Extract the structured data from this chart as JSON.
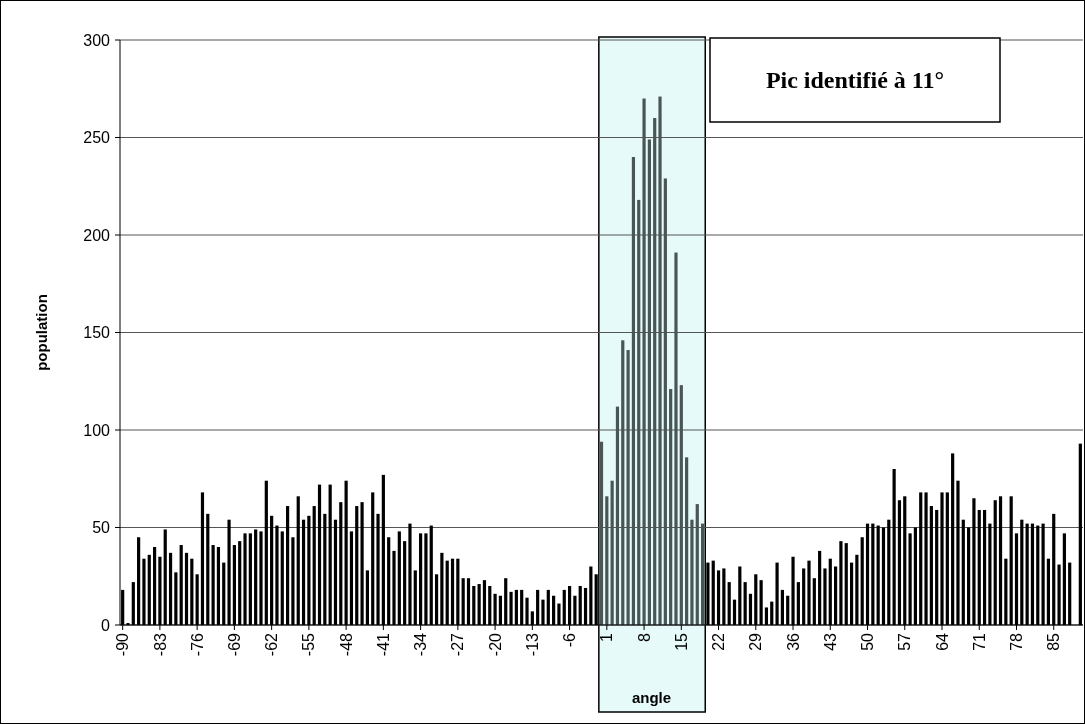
{
  "chart_data": {
    "type": "bar",
    "xlabel": "angle",
    "ylabel": "population",
    "annotations": [
      "Pic identifié à 11°"
    ],
    "x": [
      -90,
      -89,
      -88,
      -87,
      -86,
      -85,
      -84,
      -83,
      -82,
      -81,
      -80,
      -79,
      -78,
      -77,
      -76,
      -75,
      -74,
      -73,
      -72,
      -71,
      -70,
      -69,
      -68,
      -67,
      -66,
      -65,
      -64,
      -63,
      -62,
      -61,
      -60,
      -59,
      -58,
      -57,
      -56,
      -55,
      -54,
      -53,
      -52,
      -51,
      -50,
      -49,
      -48,
      -47,
      -46,
      -45,
      -44,
      -43,
      -42,
      -41,
      -40,
      -39,
      -38,
      -37,
      -36,
      -35,
      -34,
      -33,
      -32,
      -31,
      -30,
      -29,
      -28,
      -27,
      -26,
      -25,
      -24,
      -23,
      -22,
      -21,
      -20,
      -19,
      -18,
      -17,
      -16,
      -15,
      -14,
      -13,
      -12,
      -11,
      -10,
      -9,
      -8,
      -7,
      -6,
      -5,
      -4,
      -3,
      -2,
      -1,
      0,
      1,
      2,
      3,
      4,
      5,
      6,
      7,
      8,
      9,
      10,
      11,
      12,
      13,
      14,
      15,
      16,
      17,
      18,
      19,
      20,
      21,
      22,
      23,
      24,
      25,
      26,
      27,
      28,
      29,
      30,
      31,
      32,
      33,
      34,
      35,
      36,
      37,
      38,
      39,
      40,
      41,
      42,
      43,
      44,
      45,
      46,
      47,
      48,
      49,
      50,
      51,
      52,
      53,
      54,
      55,
      56,
      57,
      58,
      59,
      60,
      61,
      62,
      63,
      64,
      65,
      66,
      67,
      68,
      69,
      70,
      71,
      72,
      73,
      74,
      75,
      76,
      77,
      78,
      79,
      80,
      81,
      82,
      83,
      84,
      85,
      86,
      87,
      88,
      89,
      90
    ],
    "values": [
      18,
      1,
      22,
      45,
      34,
      36,
      40,
      35,
      49,
      37,
      27,
      41,
      37,
      34,
      26,
      68,
      57,
      41,
      40,
      32,
      54,
      41,
      43,
      47,
      47,
      49,
      48,
      74,
      56,
      51,
      48,
      61,
      45,
      66,
      54,
      56,
      61,
      72,
      57,
      72,
      54,
      63,
      74,
      48,
      61,
      63,
      28,
      68,
      57,
      77,
      45,
      38,
      48,
      43,
      52,
      28,
      47,
      47,
      51,
      26,
      37,
      33,
      34,
      34,
      24,
      24,
      20,
      21,
      23,
      20,
      16,
      15,
      24,
      17,
      18,
      18,
      14,
      7,
      18,
      13,
      18,
      15,
      11,
      18,
      20,
      15,
      20,
      19,
      30,
      26,
      94,
      66,
      74,
      112,
      146,
      141,
      240,
      218,
      270,
      249,
      260,
      271,
      229,
      121,
      191,
      123,
      86,
      54,
      62,
      52,
      32,
      33,
      28,
      29,
      22,
      13,
      30,
      22,
      16,
      26,
      23,
      9,
      12,
      32,
      18,
      15,
      35,
      22,
      29,
      33,
      24,
      38,
      29,
      34,
      30,
      43,
      42,
      32,
      36,
      45,
      52,
      52,
      51,
      50,
      54,
      80,
      64,
      66,
      47,
      50,
      68,
      68,
      61,
      59,
      68,
      68,
      88,
      74,
      54,
      50,
      65,
      59,
      59,
      52,
      64,
      66,
      34,
      66,
      47,
      54,
      52,
      52,
      51,
      52,
      34,
      57,
      31,
      47,
      32,
      0,
      93
    ],
    "colors": [
      "#000000",
      "#000000",
      "#000000",
      "#000000",
      "#000000",
      "#000000",
      "#000000",
      "#000000",
      "#000000",
      "#000000",
      "#000000",
      "#000000",
      "#000000",
      "#000000",
      "#000000",
      "#000000",
      "#000000",
      "#000000",
      "#000000",
      "#000000",
      "#000000",
      "#000000",
      "#000000",
      "#000000",
      "#000000",
      "#000000",
      "#000000",
      "#000000",
      "#000000",
      "#000000",
      "#000000",
      "#000000",
      "#000000",
      "#000000",
      "#000000",
      "#000000",
      "#000000",
      "#000000",
      "#000000",
      "#000000",
      "#000000",
      "#000000",
      "#000000",
      "#000000",
      "#000000",
      "#000000",
      "#000000",
      "#000000",
      "#000000",
      "#000000",
      "#000000",
      "#000000",
      "#000000",
      "#000000",
      "#000000",
      "#000000",
      "#000000",
      "#000000",
      "#000000",
      "#000000",
      "#000000",
      "#000000",
      "#000000",
      "#000000",
      "#000000",
      "#000000",
      "#000000",
      "#000000",
      "#000000",
      "#000000",
      "#000000",
      "#000000",
      "#000000",
      "#000000",
      "#000000",
      "#000000",
      "#000000",
      "#000000",
      "#000000",
      "#000000",
      "#000000",
      "#000000",
      "#000000",
      "#000000",
      "#000000",
      "#000000",
      "#000000",
      "#000000",
      "#000000",
      "#000000",
      "#4a5555",
      "#4a5555",
      "#4a5555",
      "#4a5555",
      "#4a5555",
      "#4a5555",
      "#4a5555",
      "#4a5555",
      "#4a5555",
      "#4a5555",
      "#4a5555",
      "#4a5555",
      "#4a5555",
      "#4a5555",
      "#4a5555",
      "#4a5555",
      "#4a5555",
      "#4a5555",
      "#4a5555",
      "#4a5555",
      "#000000",
      "#000000",
      "#000000",
      "#000000",
      "#000000",
      "#000000",
      "#000000",
      "#000000",
      "#000000",
      "#000000",
      "#000000",
      "#000000",
      "#000000",
      "#000000",
      "#000000",
      "#000000",
      "#000000",
      "#000000",
      "#000000",
      "#000000",
      "#000000",
      "#000000",
      "#000000",
      "#000000",
      "#000000",
      "#000000",
      "#000000",
      "#000000",
      "#000000",
      "#000000",
      "#000000",
      "#000000",
      "#000000",
      "#000000",
      "#000000",
      "#000000",
      "#000000",
      "#000000",
      "#000000",
      "#000000",
      "#000000",
      "#000000",
      "#000000",
      "#000000",
      "#000000",
      "#000000",
      "#000000",
      "#000000",
      "#000000",
      "#000000",
      "#000000",
      "#000000",
      "#000000",
      "#000000",
      "#000000",
      "#000000",
      "#000000",
      "#000000",
      "#000000",
      "#000000",
      "#000000",
      "#000000",
      "#000000",
      "#000000",
      "#000000",
      "#000000",
      "#000000",
      "#000000",
      "#000000",
      "#000000",
      "#000000"
    ],
    "xlim": [
      -90.5,
      90.5
    ],
    "xticks": [
      -90,
      -83,
      -76,
      -69,
      -62,
      -55,
      -48,
      -41,
      -34,
      -27,
      -20,
      -13,
      -6,
      1,
      8,
      15,
      22,
      29,
      36,
      43,
      50,
      57,
      64,
      71,
      78,
      85
    ],
    "ylim": [
      0,
      300
    ],
    "yticks": [
      0,
      50,
      100,
      150,
      200,
      250,
      300
    ],
    "grid": "y",
    "bands": [
      {
        "axis": "x",
        "from": -0.5,
        "to": 19.5,
        "color": "#e6fafa"
      }
    ]
  }
}
